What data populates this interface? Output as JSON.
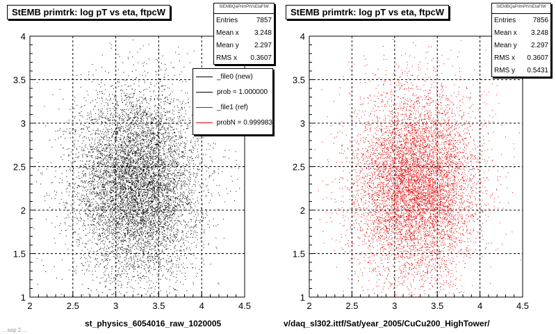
{
  "chart_data": [
    {
      "type": "scatter",
      "title": "StEMB primtrk: log pT vs eta, ftpcW",
      "xlabel": "st_physics_6054016_raw_1020005",
      "ylabel": "",
      "xlim": [
        2,
        4.5
      ],
      "ylim": [
        1,
        4
      ],
      "xticks": [
        "2",
        "2.5",
        "3",
        "3.5",
        "4",
        "4.5"
      ],
      "yticks": [
        "1",
        "1.5",
        "2",
        "2.5",
        "3",
        "3.5",
        "4"
      ],
      "grid": true,
      "series": [
        {
          "name": "_file0 (new)",
          "color": "#000000",
          "entries": 7857,
          "mean_x": 3.248,
          "mean_y": 2.297,
          "rms_x": 0.3607,
          "rms_y": 0.5431
        }
      ],
      "stats": {
        "header": "StEMBQaPrimPtVsEtaFtW",
        "rows": [
          {
            "label": "Entries",
            "value": "7857"
          },
          {
            "label": "Mean x",
            "value": "3.248"
          },
          {
            "label": "Mean y",
            "value": "2.297"
          },
          {
            "label": "RMS x",
            "value": "0.3607"
          }
        ]
      },
      "legend": [
        {
          "label": "_file0 (new)",
          "color": "#000000"
        },
        {
          "label": "prob = 1.000000",
          "color": "#000000"
        },
        {
          "label": "_file1 (ref)",
          "color": "#e00000"
        },
        {
          "label": "probN = 0.999983",
          "color": "#e00000"
        }
      ]
    },
    {
      "type": "scatter",
      "title": "StEMB primtrk: log pT vs eta, ftpcW",
      "xlabel": "v/daq_sl302.ittf/Sat/year_2005/CuCu200_HighTower/",
      "ylabel": "",
      "xlim": [
        2,
        4.5
      ],
      "ylim": [
        1,
        4
      ],
      "xticks": [
        "2",
        "2.5",
        "3",
        "3.5",
        "4",
        "4.5"
      ],
      "yticks": [
        "1",
        "1.5",
        "2",
        "2.5",
        "3",
        "3.5",
        "4"
      ],
      "grid": true,
      "series": [
        {
          "name": "_file1 (ref)",
          "color": "#e00000",
          "entries": 7856,
          "mean_x": 3.248,
          "mean_y": 2.297,
          "rms_x": 0.3607,
          "rms_y": 0.5431
        }
      ],
      "stats": {
        "header": "StEMBQaPrimPtVsEtaFtW",
        "rows": [
          {
            "label": "Entries",
            "value": "7856"
          },
          {
            "label": "Mean x",
            "value": "3.248"
          },
          {
            "label": "Mean y",
            "value": "2.297"
          },
          {
            "label": "RMS x",
            "value": "0.3607"
          },
          {
            "label": "RMS y",
            "value": "0.5431"
          }
        ]
      }
    }
  ],
  "corner_note": "...sep 2 ..."
}
